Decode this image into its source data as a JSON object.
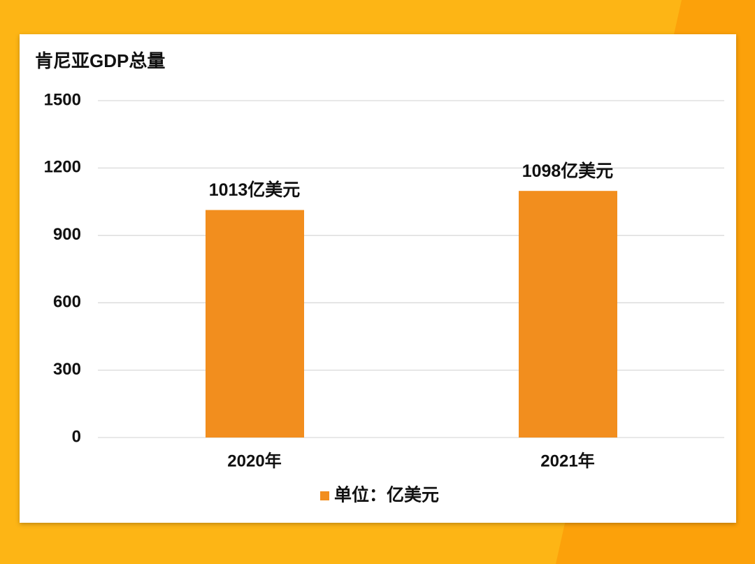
{
  "chart_data": {
    "type": "bar",
    "title": "肯尼亚GDP总量",
    "categories": [
      "2020年",
      "2021年"
    ],
    "series": [
      {
        "name": "单位：亿美元",
        "color": "#f28e1e",
        "values": [
          1013,
          1098
        ],
        "value_labels": [
          "1013亿美元",
          "1098亿美元"
        ]
      }
    ],
    "ylim": [
      0,
      1500
    ],
    "yticks": [
      0,
      300,
      600,
      900,
      1200,
      1500
    ],
    "grid": true,
    "legend": "bottom"
  }
}
